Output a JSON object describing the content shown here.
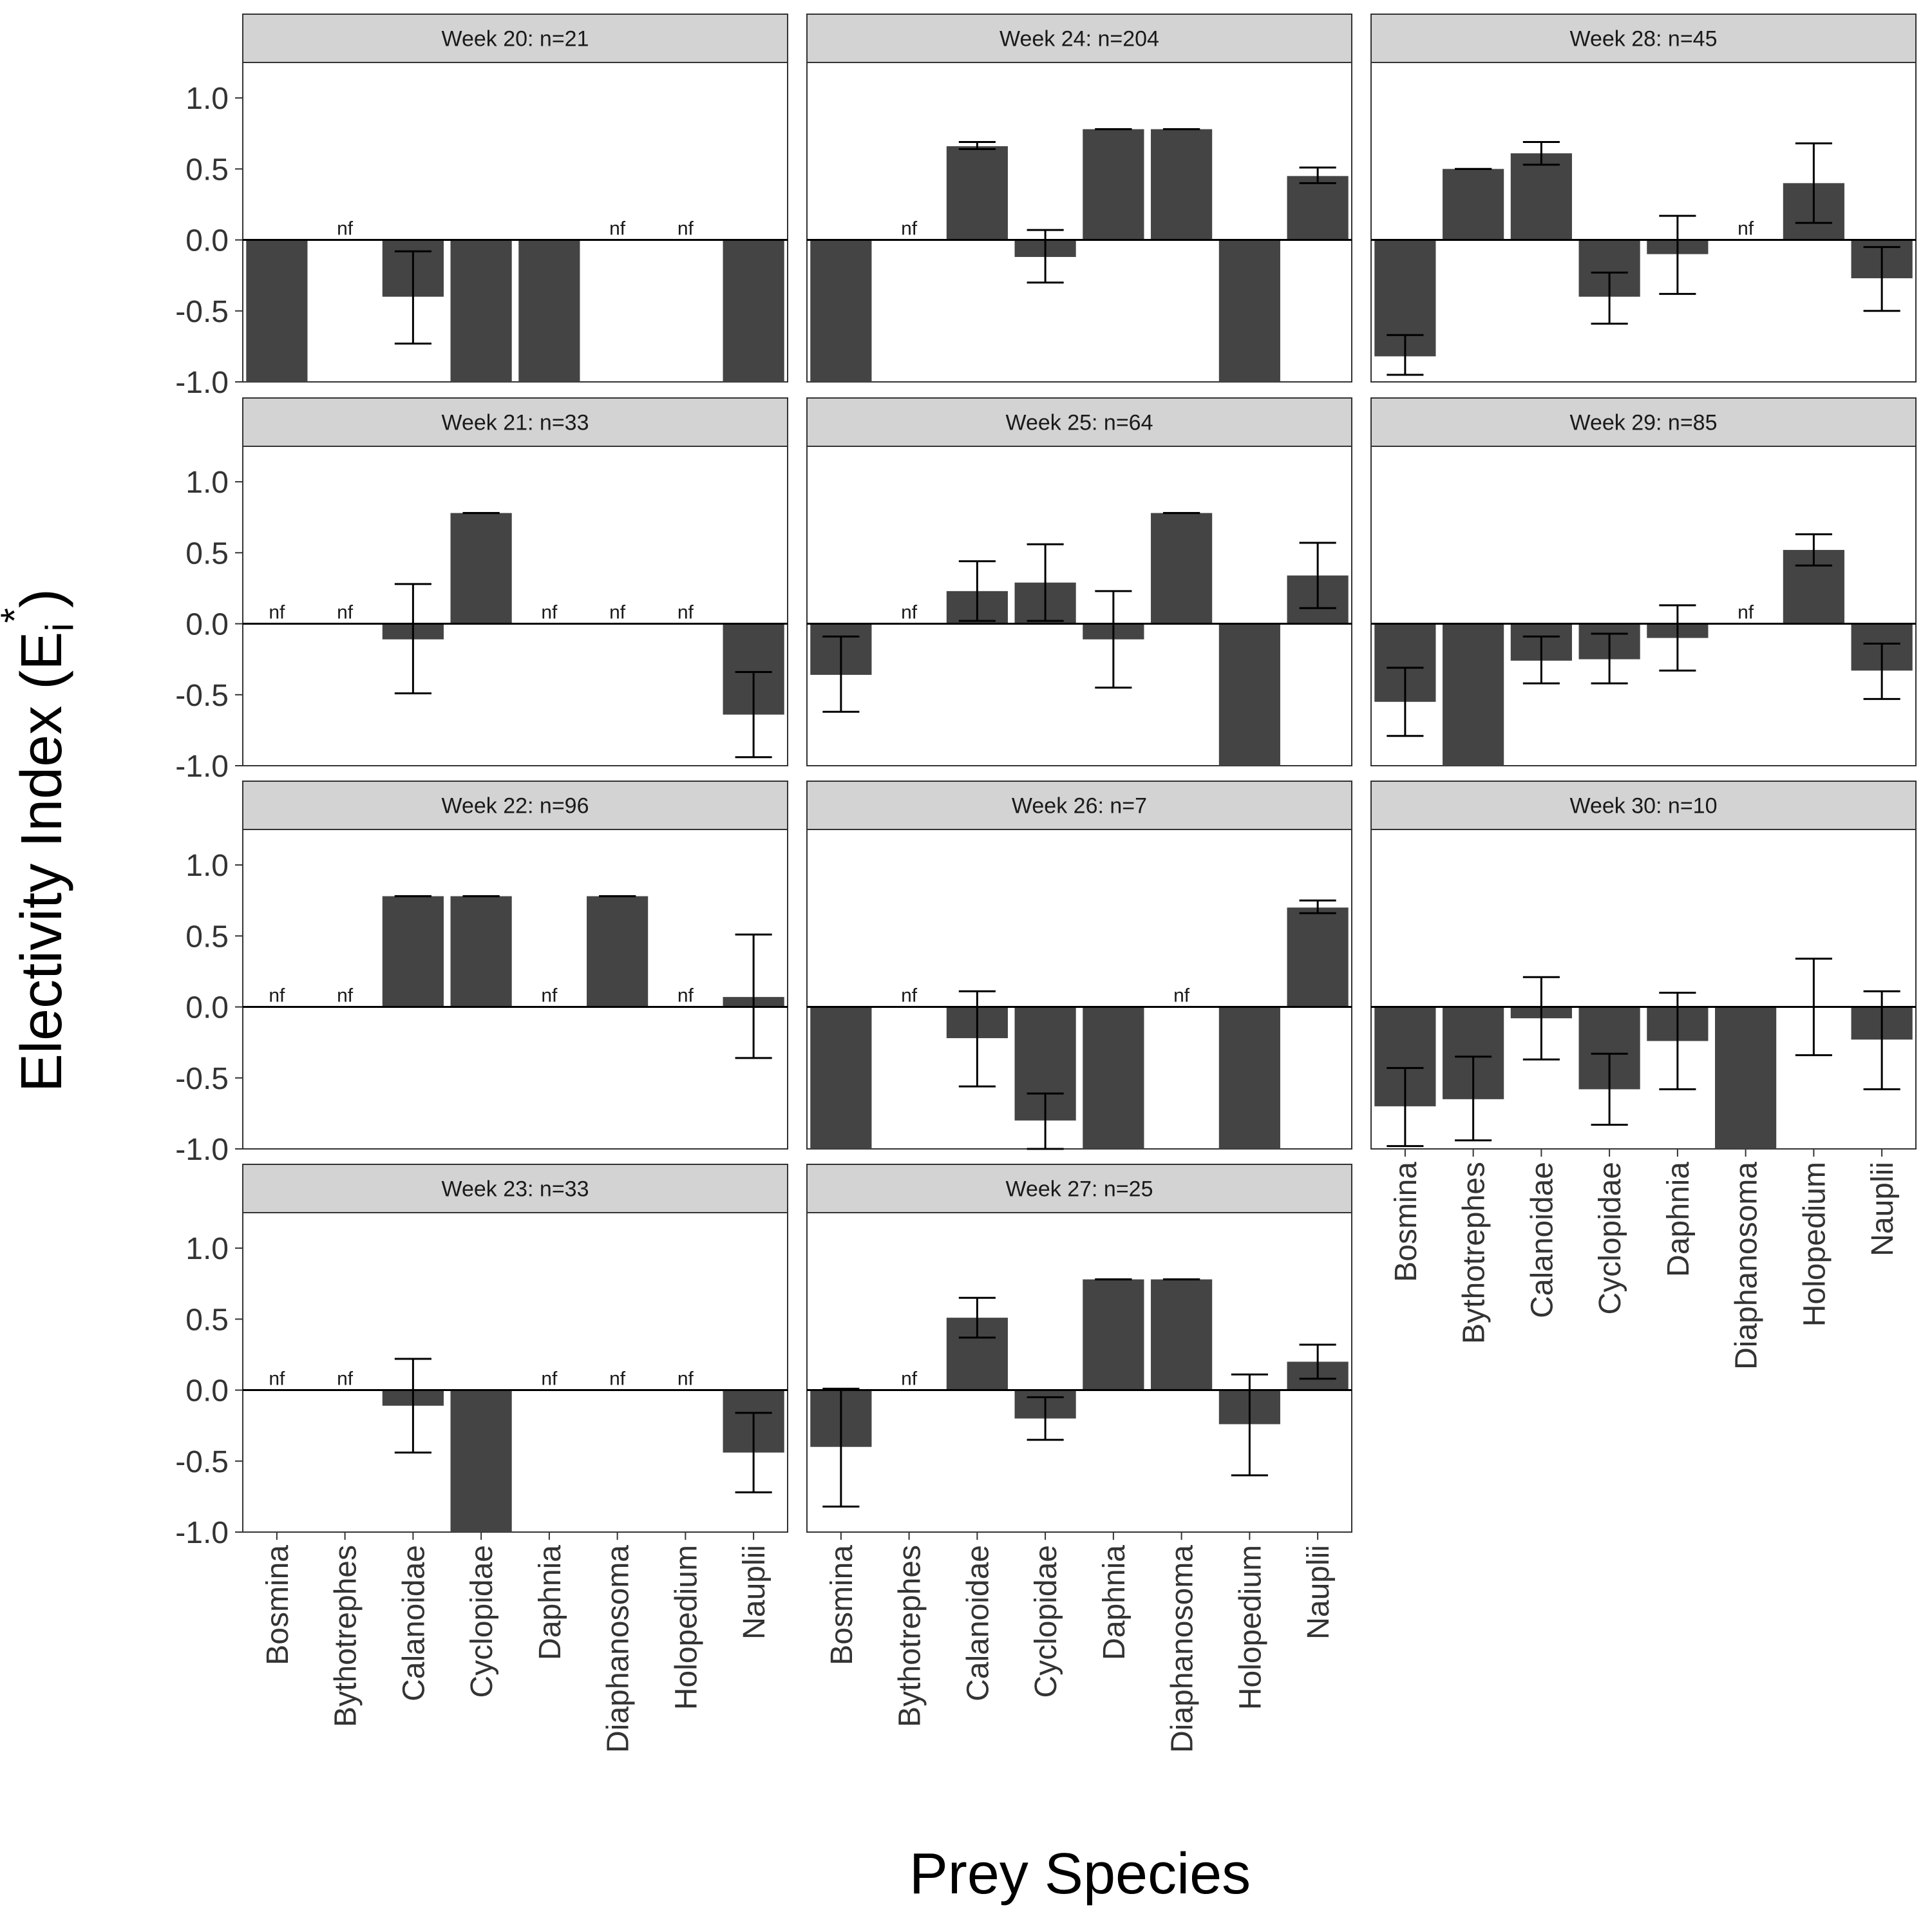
{
  "chart_data": {
    "type": "bar",
    "xlabel": "Prey Species",
    "ylabel": "Electivity Index (E",
    "ylabel_subscript": "i",
    "ylabel_superscript": "*",
    "ylabel_close": ")",
    "ylim": [
      -1.0,
      1.0
    ],
    "yticks": [
      "1.0",
      "0.5",
      "0.0",
      "-0.5",
      "-1.0"
    ],
    "categories": [
      "Bosmina",
      "Bythotrephes",
      "Calanoidae",
      "Cyclopidae",
      "Daphnia",
      "Diaphanosoma",
      "Holopedium",
      "Nauplii"
    ],
    "not_found_label": "nf",
    "bar_color": "#444444",
    "strip_color": "#d3d3d3",
    "panels": [
      {
        "title": "Week 20: n=21",
        "values": [
          -1.0,
          0,
          -0.4,
          -1.0,
          -1.0,
          0,
          0,
          -1.0
        ],
        "errors": [
          null,
          null,
          [
            -0.73,
            -0.08
          ],
          null,
          null,
          null,
          null,
          null
        ],
        "nf": [
          false,
          true,
          false,
          false,
          false,
          true,
          true,
          false
        ]
      },
      {
        "title": "Week 21: n=33",
        "values": [
          0,
          0,
          -0.11,
          0.78,
          0,
          0,
          0,
          -0.64
        ],
        "errors": [
          null,
          null,
          [
            -0.49,
            0.28
          ],
          [
            0.78,
            0.78
          ],
          null,
          null,
          null,
          [
            -0.94,
            -0.34
          ]
        ],
        "nf": [
          true,
          true,
          false,
          false,
          true,
          true,
          true,
          false
        ]
      },
      {
        "title": "Week 22: n=96",
        "values": [
          0,
          0,
          0.78,
          0.78,
          0,
          0.78,
          0,
          0.07
        ],
        "errors": [
          null,
          null,
          [
            0.78,
            0.78
          ],
          [
            0.78,
            0.78
          ],
          null,
          [
            0.78,
            0.78
          ],
          null,
          [
            -0.36,
            0.51
          ]
        ],
        "nf": [
          true,
          true,
          false,
          false,
          true,
          false,
          true,
          false
        ]
      },
      {
        "title": "Week 23: n=33",
        "values": [
          0,
          0,
          -0.11,
          -1.0,
          0,
          0,
          0,
          -0.44
        ],
        "errors": [
          null,
          null,
          [
            -0.44,
            0.22
          ],
          null,
          null,
          null,
          null,
          [
            -0.72,
            -0.16
          ]
        ],
        "nf": [
          true,
          true,
          false,
          false,
          true,
          true,
          true,
          false
        ]
      },
      {
        "title": "Week 24: n=204",
        "values": [
          -1.0,
          0,
          0.66,
          -0.12,
          0.78,
          0.78,
          -1.0,
          0.45
        ],
        "errors": [
          null,
          null,
          [
            0.64,
            0.69
          ],
          [
            -0.3,
            0.07
          ],
          [
            0.78,
            0.78
          ],
          [
            0.78,
            0.78
          ],
          null,
          [
            0.4,
            0.51
          ]
        ],
        "nf": [
          false,
          true,
          false,
          false,
          false,
          false,
          false,
          false
        ]
      },
      {
        "title": "Week 25: n=64",
        "values": [
          -0.36,
          0,
          0.23,
          0.29,
          -0.11,
          0.78,
          -1.0,
          0.34
        ],
        "errors": [
          [
            -0.62,
            -0.09
          ],
          null,
          [
            0.02,
            0.44
          ],
          [
            0.02,
            0.56
          ],
          [
            -0.45,
            0.23
          ],
          [
            0.78,
            0.78
          ],
          null,
          [
            0.11,
            0.57
          ]
        ],
        "nf": [
          false,
          true,
          false,
          false,
          false,
          false,
          false,
          false
        ]
      },
      {
        "title": "Week 26: n=7",
        "values": [
          -1.0,
          0,
          -0.22,
          -0.8,
          -1.0,
          0,
          -1.0,
          0.7
        ],
        "errors": [
          null,
          null,
          [
            -0.56,
            0.11
          ],
          [
            -1.0,
            -0.61
          ],
          null,
          null,
          null,
          [
            0.66,
            0.75
          ]
        ],
        "nf": [
          false,
          true,
          false,
          false,
          false,
          true,
          false,
          false
        ]
      },
      {
        "title": "Week 27: n=25",
        "values": [
          -0.4,
          0,
          0.51,
          -0.2,
          0.78,
          0.78,
          -0.24,
          0.2
        ],
        "errors": [
          [
            -0.82,
            0.01
          ],
          null,
          [
            0.37,
            0.65
          ],
          [
            -0.35,
            -0.05
          ],
          [
            0.78,
            0.78
          ],
          [
            0.78,
            0.78
          ],
          [
            -0.6,
            0.11
          ],
          [
            0.08,
            0.32
          ]
        ],
        "nf": [
          false,
          true,
          false,
          false,
          false,
          false,
          false,
          false
        ]
      },
      {
        "title": "Week 28: n=45",
        "values": [
          -0.82,
          0.5,
          0.61,
          -0.4,
          -0.1,
          0,
          0.4,
          -0.27
        ],
        "errors": [
          [
            -0.95,
            -0.67
          ],
          [
            0.5,
            0.5
          ],
          [
            0.53,
            0.69
          ],
          [
            -0.59,
            -0.23
          ],
          [
            -0.38,
            0.17
          ],
          null,
          [
            0.12,
            0.68
          ],
          [
            -0.5,
            -0.05
          ]
        ],
        "nf": [
          false,
          false,
          false,
          false,
          false,
          true,
          false,
          false
        ]
      },
      {
        "title": "Week 29: n=85",
        "values": [
          -0.55,
          -1.0,
          -0.26,
          -0.25,
          -0.1,
          0,
          0.52,
          -0.33
        ],
        "errors": [
          [
            -0.79,
            -0.31
          ],
          null,
          [
            -0.42,
            -0.09
          ],
          [
            -0.42,
            -0.07
          ],
          [
            -0.33,
            0.13
          ],
          null,
          [
            0.41,
            0.63
          ],
          [
            -0.53,
            -0.14
          ]
        ],
        "nf": [
          false,
          false,
          false,
          false,
          false,
          true,
          false,
          false
        ]
      },
      {
        "title": "Week 30: n=10",
        "values": [
          -0.7,
          -0.65,
          -0.08,
          -0.58,
          -0.24,
          -1.0,
          0,
          -0.23
        ],
        "errors": [
          [
            -0.98,
            -0.43
          ],
          [
            -0.94,
            -0.35
          ],
          [
            -0.37,
            0.21
          ],
          [
            -0.83,
            -0.33
          ],
          [
            -0.58,
            0.1
          ],
          null,
          [
            -0.34,
            0.34
          ],
          [
            -0.58,
            0.11
          ]
        ],
        "nf": [
          false,
          false,
          false,
          false,
          false,
          false,
          false,
          false
        ]
      }
    ]
  }
}
